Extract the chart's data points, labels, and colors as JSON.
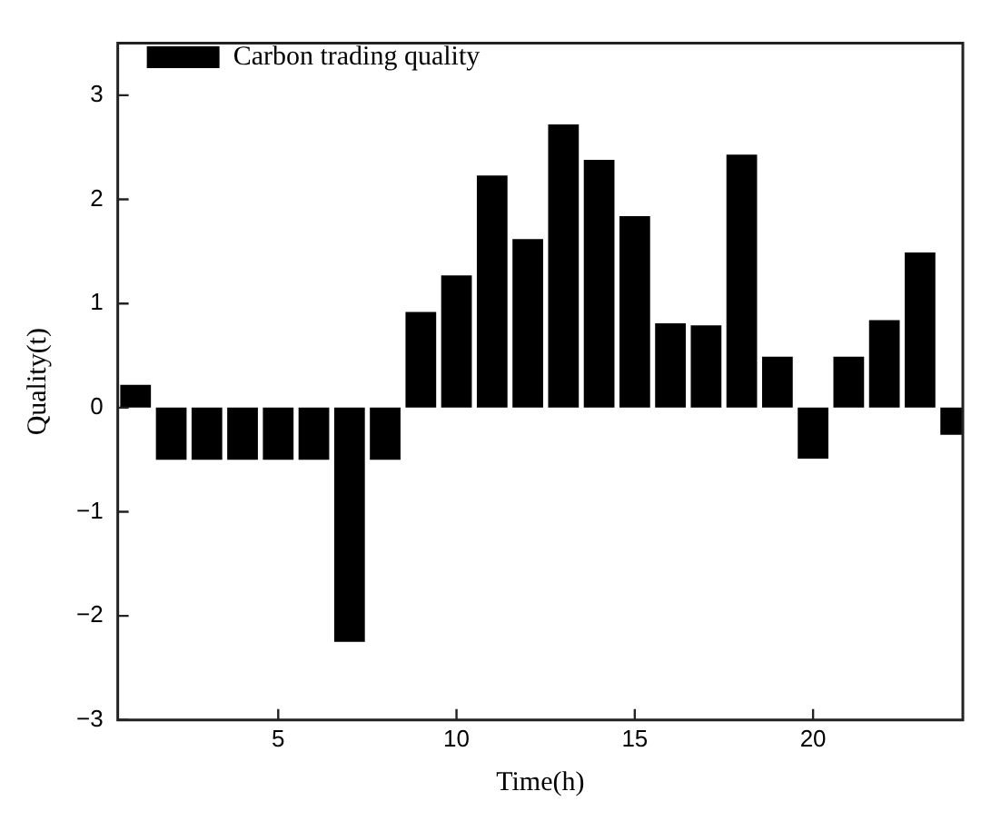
{
  "chart_data": {
    "type": "bar",
    "xlabel": "Time(h)",
    "ylabel": "Quality(t)",
    "x": [
      1,
      2,
      3,
      4,
      5,
      6,
      7,
      8,
      9,
      10,
      11,
      12,
      13,
      14,
      15,
      16,
      17,
      18,
      19,
      20,
      21,
      22,
      23,
      24
    ],
    "series": [
      {
        "name": "Carbon trading quality",
        "color": "#000000",
        "values": [
          0.22,
          -0.5,
          -0.5,
          -0.5,
          -0.5,
          -0.5,
          -2.25,
          -0.5,
          0.92,
          1.27,
          2.23,
          1.62,
          2.72,
          2.38,
          1.84,
          0.81,
          0.79,
          2.43,
          0.49,
          -0.49,
          0.49,
          0.84,
          1.49,
          -0.26
        ]
      }
    ],
    "xlim": [
      0.5,
      24.2
    ],
    "xticks": [
      5,
      10,
      15,
      20
    ],
    "ylim": [
      -3,
      3.5
    ],
    "yticks": [
      -3,
      -2,
      -1,
      0,
      1,
      2,
      3
    ],
    "grid": false,
    "legend": "top left"
  }
}
